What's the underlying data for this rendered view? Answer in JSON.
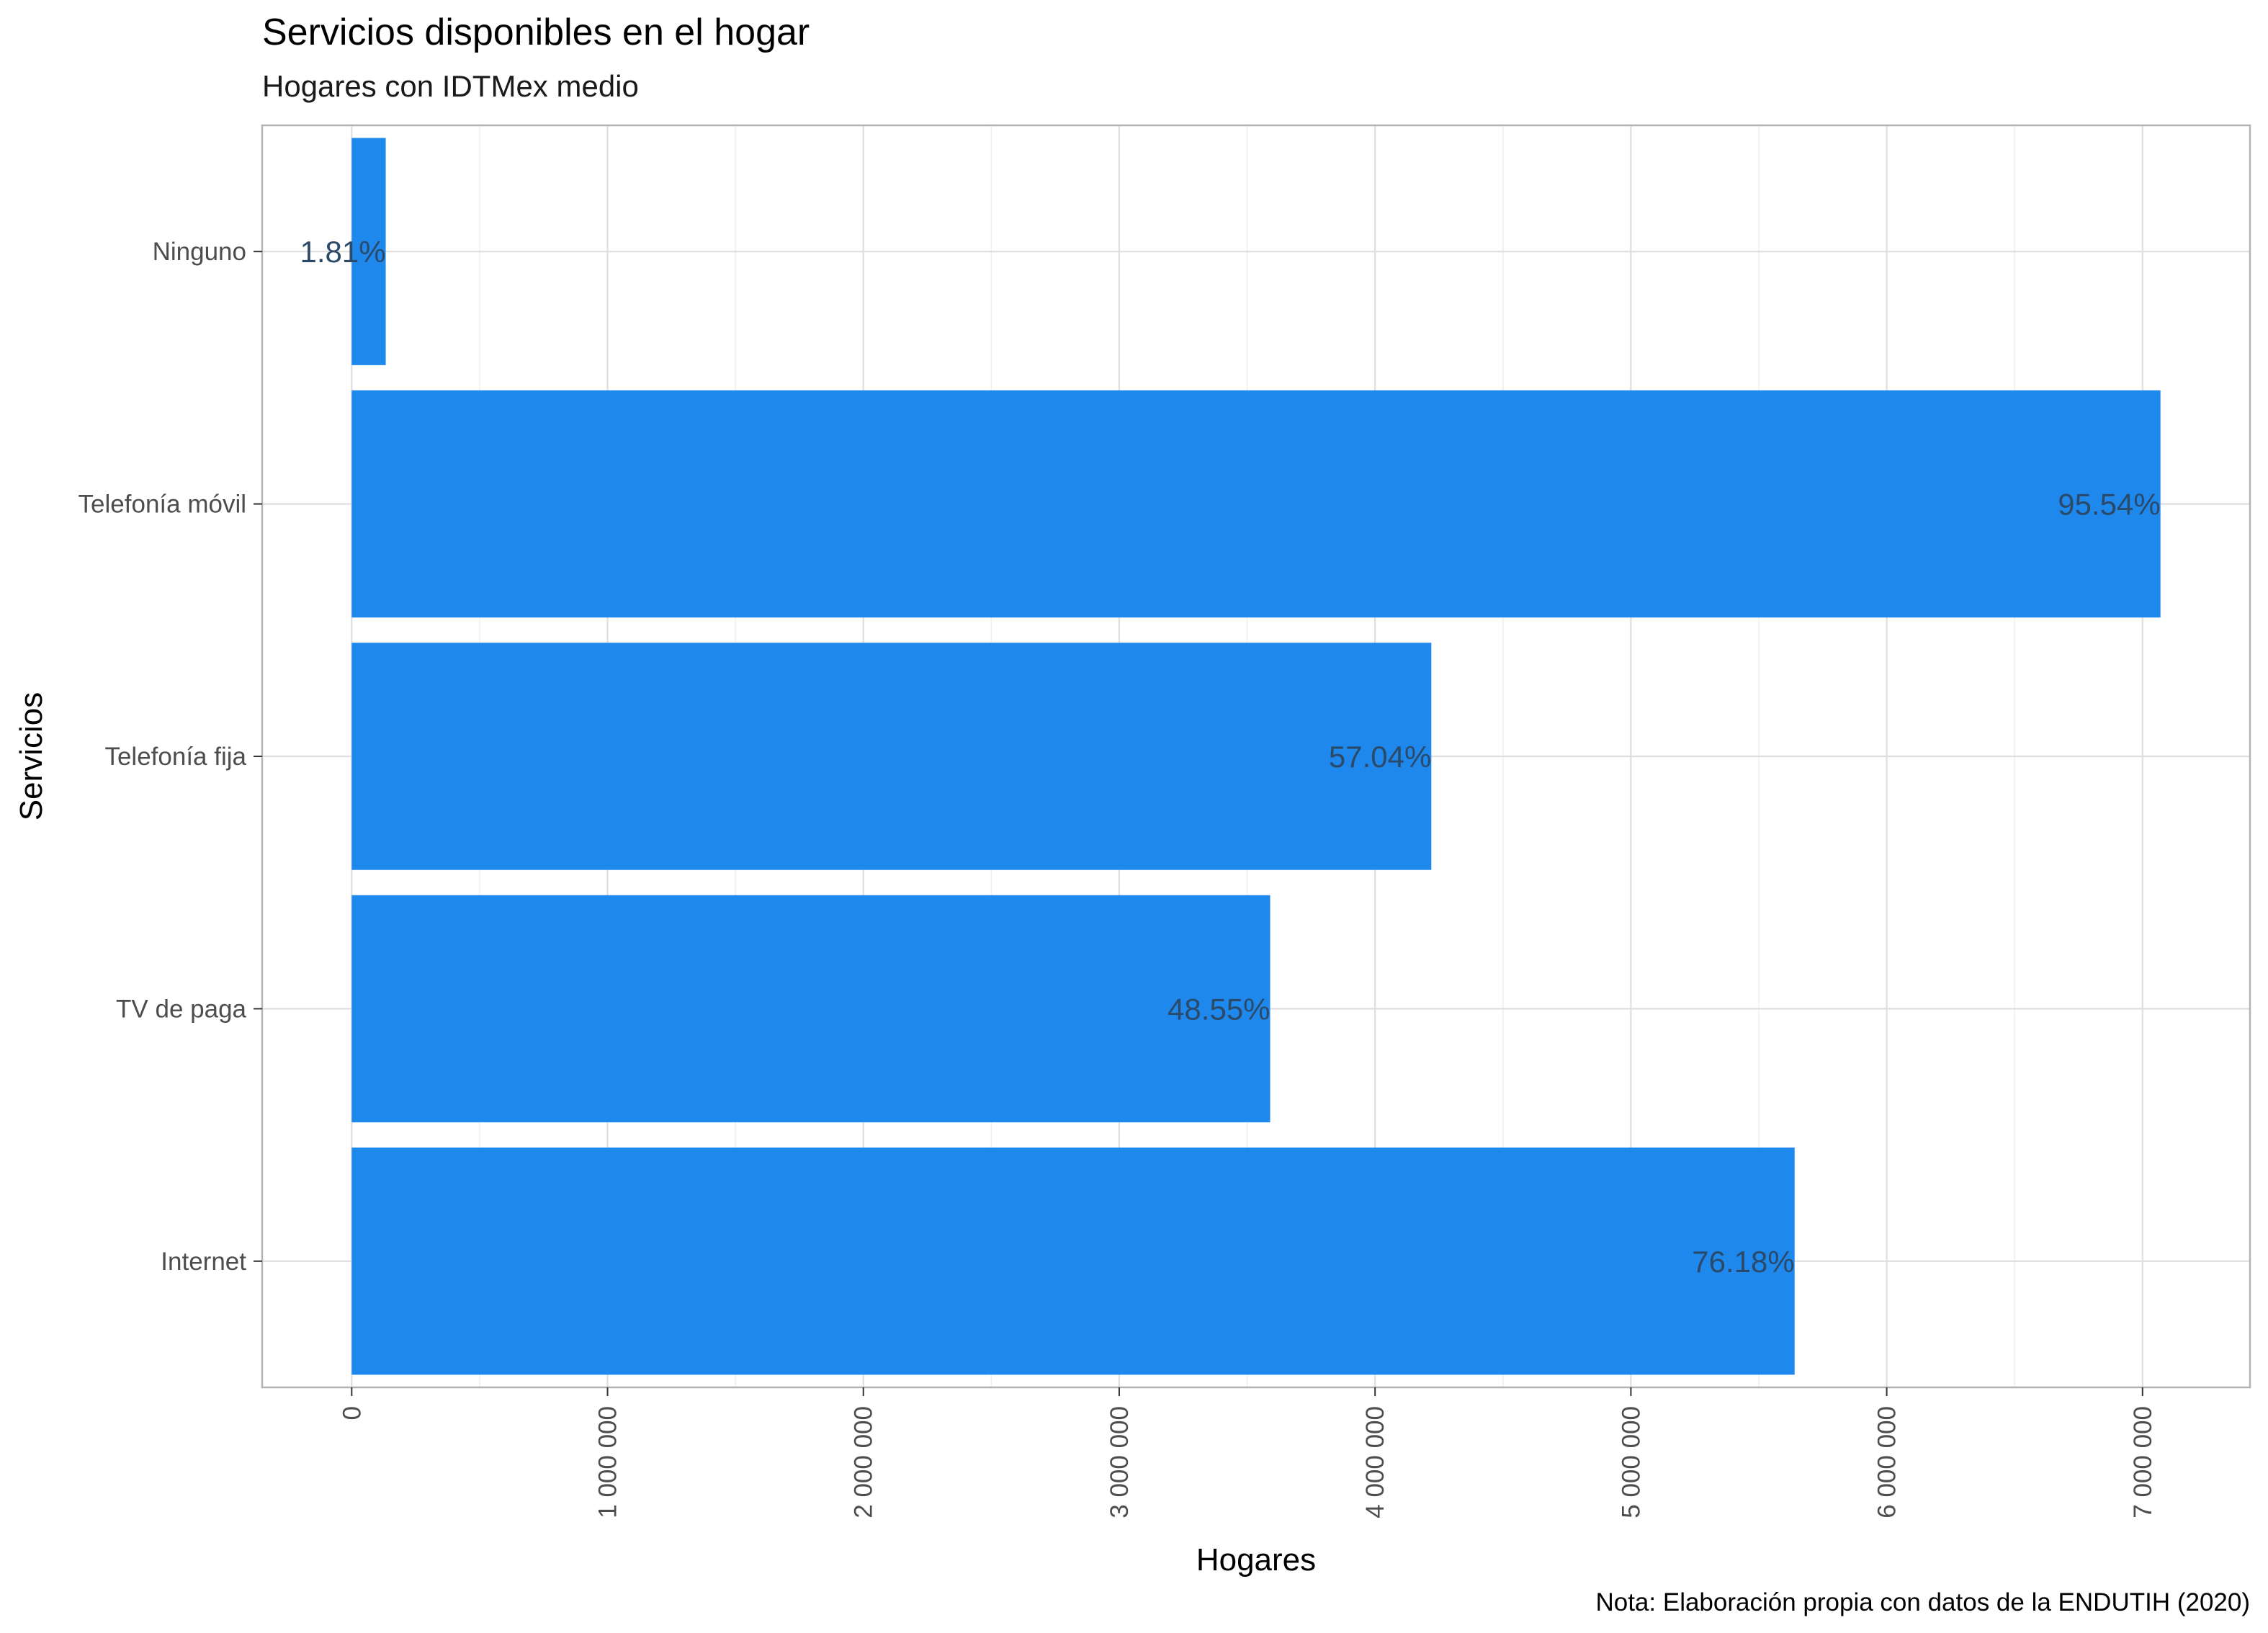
{
  "chart_data": {
    "type": "bar",
    "orientation": "horizontal",
    "title": "Servicios disponibles en el hogar",
    "subtitle": "Hogares con IDTMex medio",
    "xlabel": "Hogares",
    "ylabel": "Servicios",
    "caption": "Nota: Elaboración propia con datos de la ENDUTIH (2020)",
    "categories": [
      "Ninguno",
      "Telefonía móvil",
      "Telefonía fija",
      "TV de paga",
      "Internet"
    ],
    "values": [
      133000,
      7070000,
      4220000,
      3590000,
      5640000
    ],
    "data_labels": [
      "1.81%",
      "95.54%",
      "57.04%",
      "48.55%",
      "76.18%"
    ],
    "xlim": [
      -350000,
      7420000
    ],
    "x_ticks": [
      0,
      1000000,
      2000000,
      3000000,
      4000000,
      5000000,
      6000000,
      7000000
    ],
    "x_tick_labels": [
      "0",
      "1 000 000",
      "2 000 000",
      "3 000 000",
      "4 000 000",
      "5 000 000",
      "6 000 000",
      "7 000 000"
    ],
    "grid": true,
    "bar_color": "#1e88ec",
    "label_color": "#2b4a6a",
    "ninguno_label_color": "#0d4f9c"
  }
}
